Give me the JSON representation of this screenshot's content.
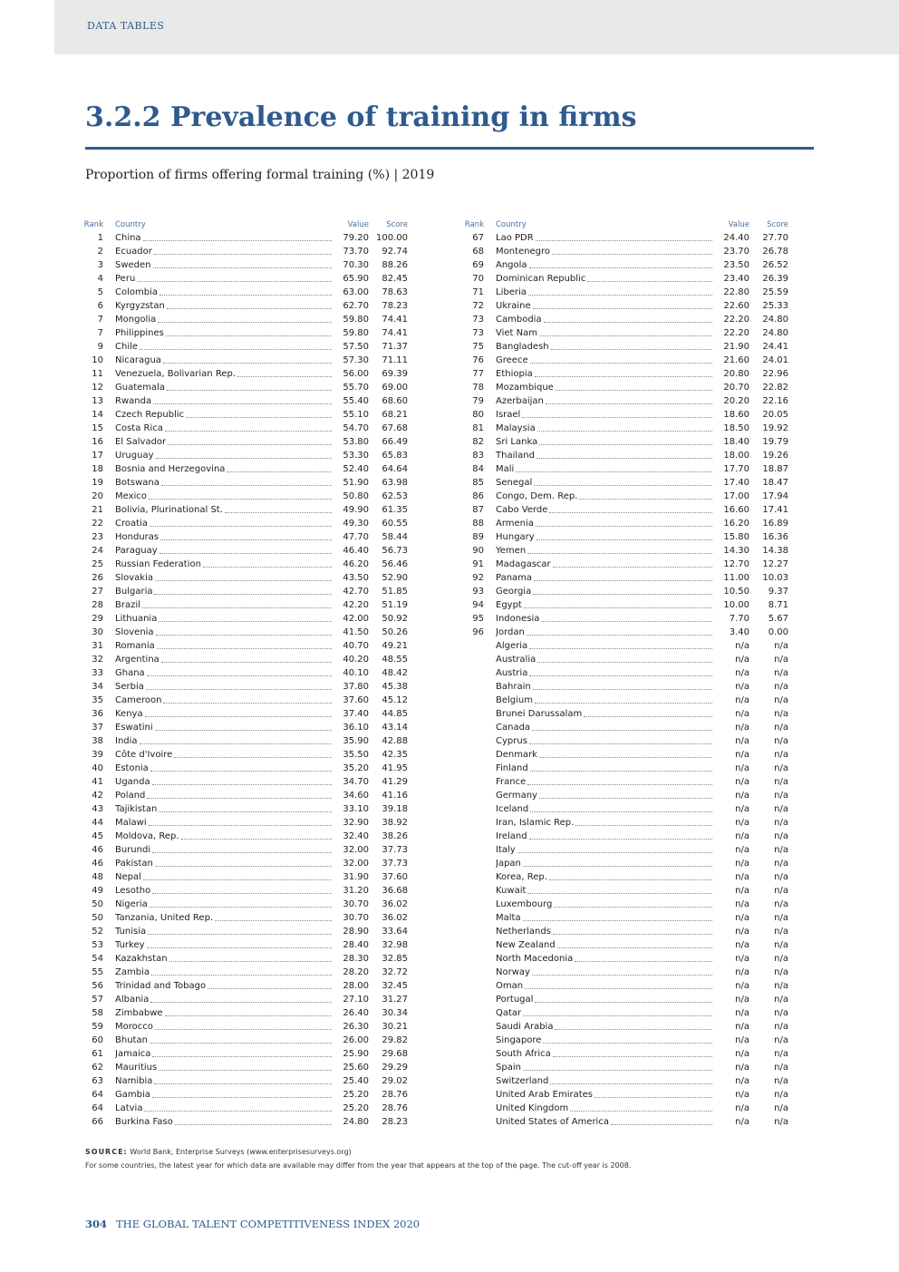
{
  "header": {
    "section": "DATA TABLES"
  },
  "title": "3.2.2  Prevalence of training in firms",
  "subtitle": "Proportion of firms offering formal training (%) | 2019",
  "columns": {
    "rank": "Rank",
    "country": "Country",
    "value": "Value",
    "score": "Score"
  },
  "colors": {
    "accent": "#2e5a8e",
    "band": "#e9e9e9"
  },
  "left_rows": [
    [
      "1",
      "China",
      "79.20",
      "100.00"
    ],
    [
      "2",
      "Ecuador",
      "73.70",
      "92.74"
    ],
    [
      "3",
      "Sweden",
      "70.30",
      "88.26"
    ],
    [
      "4",
      "Peru",
      "65.90",
      "82.45"
    ],
    [
      "5",
      "Colombia",
      "63.00",
      "78.63"
    ],
    [
      "6",
      "Kyrgyzstan",
      "62.70",
      "78.23"
    ],
    [
      "7",
      "Mongolia",
      "59.80",
      "74.41"
    ],
    [
      "7",
      "Philippines",
      "59.80",
      "74.41"
    ],
    [
      "9",
      "Chile",
      "57.50",
      "71.37"
    ],
    [
      "10",
      "Nicaragua",
      "57.30",
      "71.11"
    ],
    [
      "11",
      "Venezuela, Bolivarian Rep.",
      "56.00",
      "69.39"
    ],
    [
      "12",
      "Guatemala",
      "55.70",
      "69.00"
    ],
    [
      "13",
      "Rwanda",
      "55.40",
      "68.60"
    ],
    [
      "14",
      "Czech Republic",
      "55.10",
      "68.21"
    ],
    [
      "15",
      "Costa Rica",
      "54.70",
      "67.68"
    ],
    [
      "16",
      "El Salvador",
      "53.80",
      "66.49"
    ],
    [
      "17",
      "Uruguay",
      "53.30",
      "65.83"
    ],
    [
      "18",
      "Bosnia and Herzegovina",
      "52.40",
      "64.64"
    ],
    [
      "19",
      "Botswana",
      "51.90",
      "63.98"
    ],
    [
      "20",
      "Mexico",
      "50.80",
      "62.53"
    ],
    [
      "21",
      "Bolivia, Plurinational St.",
      "49.90",
      "61.35"
    ],
    [
      "22",
      "Croatia",
      "49.30",
      "60.55"
    ],
    [
      "23",
      "Honduras",
      "47.70",
      "58.44"
    ],
    [
      "24",
      "Paraguay",
      "46.40",
      "56.73"
    ],
    [
      "25",
      "Russian Federation",
      "46.20",
      "56.46"
    ],
    [
      "26",
      "Slovakia",
      "43.50",
      "52.90"
    ],
    [
      "27",
      "Bulgaria",
      "42.70",
      "51.85"
    ],
    [
      "28",
      "Brazil",
      "42.20",
      "51.19"
    ],
    [
      "29",
      "Lithuania",
      "42.00",
      "50.92"
    ],
    [
      "30",
      "Slovenia",
      "41.50",
      "50.26"
    ],
    [
      "31",
      "Romania",
      "40.70",
      "49.21"
    ],
    [
      "32",
      "Argentina",
      "40.20",
      "48.55"
    ],
    [
      "33",
      "Ghana",
      "40.10",
      "48.42"
    ],
    [
      "34",
      "Serbia",
      "37.80",
      "45.38"
    ],
    [
      "35",
      "Cameroon",
      "37.60",
      "45.12"
    ],
    [
      "36",
      "Kenya",
      "37.40",
      "44.85"
    ],
    [
      "37",
      "Eswatini",
      "36.10",
      "43.14"
    ],
    [
      "38",
      "India",
      "35.90",
      "42.88"
    ],
    [
      "39",
      "Côte d'Ivoire",
      "35.50",
      "42.35"
    ],
    [
      "40",
      "Estonia",
      "35.20",
      "41.95"
    ],
    [
      "41",
      "Uganda",
      "34.70",
      "41.29"
    ],
    [
      "42",
      "Poland",
      "34.60",
      "41.16"
    ],
    [
      "43",
      "Tajikistan",
      "33.10",
      "39.18"
    ],
    [
      "44",
      "Malawi",
      "32.90",
      "38.92"
    ],
    [
      "45",
      "Moldova, Rep.",
      "32.40",
      "38.26"
    ],
    [
      "46",
      "Burundi",
      "32.00",
      "37.73"
    ],
    [
      "46",
      "Pakistan",
      "32.00",
      "37.73"
    ],
    [
      "48",
      "Nepal",
      "31.90",
      "37.60"
    ],
    [
      "49",
      "Lesotho",
      "31.20",
      "36.68"
    ],
    [
      "50",
      "Nigeria",
      "30.70",
      "36.02"
    ],
    [
      "50",
      "Tanzania, United Rep.",
      "30.70",
      "36.02"
    ],
    [
      "52",
      "Tunisia",
      "28.90",
      "33.64"
    ],
    [
      "53",
      "Turkey",
      "28.40",
      "32.98"
    ],
    [
      "54",
      "Kazakhstan",
      "28.30",
      "32.85"
    ],
    [
      "55",
      "Zambia",
      "28.20",
      "32.72"
    ],
    [
      "56",
      "Trinidad and Tobago",
      "28.00",
      "32.45"
    ],
    [
      "57",
      "Albania",
      "27.10",
      "31.27"
    ],
    [
      "58",
      "Zimbabwe",
      "26.40",
      "30.34"
    ],
    [
      "59",
      "Morocco",
      "26.30",
      "30.21"
    ],
    [
      "60",
      "Bhutan",
      "26.00",
      "29.82"
    ],
    [
      "61",
      "Jamaica",
      "25.90",
      "29.68"
    ],
    [
      "62",
      "Mauritius",
      "25.60",
      "29.29"
    ],
    [
      "63",
      "Namibia",
      "25.40",
      "29.02"
    ],
    [
      "64",
      "Gambia",
      "25.20",
      "28.76"
    ],
    [
      "64",
      "Latvia",
      "25.20",
      "28.76"
    ],
    [
      "66",
      "Burkina Faso",
      "24.80",
      "28.23"
    ]
  ],
  "right_rows": [
    [
      "67",
      "Lao PDR",
      "24.40",
      "27.70"
    ],
    [
      "68",
      "Montenegro",
      "23.70",
      "26.78"
    ],
    [
      "69",
      "Angola",
      "23.50",
      "26.52"
    ],
    [
      "70",
      "Dominican Republic",
      "23.40",
      "26.39"
    ],
    [
      "71",
      "Liberia",
      "22.80",
      "25.59"
    ],
    [
      "72",
      "Ukraine",
      "22.60",
      "25.33"
    ],
    [
      "73",
      "Cambodia",
      "22.20",
      "24.80"
    ],
    [
      "73",
      "Viet Nam",
      "22.20",
      "24.80"
    ],
    [
      "75",
      "Bangladesh",
      "21.90",
      "24.41"
    ],
    [
      "76",
      "Greece",
      "21.60",
      "24.01"
    ],
    [
      "77",
      "Ethiopia",
      "20.80",
      "22.96"
    ],
    [
      "78",
      "Mozambique",
      "20.70",
      "22.82"
    ],
    [
      "79",
      "Azerbaijan",
      "20.20",
      "22.16"
    ],
    [
      "80",
      "Israel",
      "18.60",
      "20.05"
    ],
    [
      "81",
      "Malaysia",
      "18.50",
      "19.92"
    ],
    [
      "82",
      "Sri Lanka",
      "18.40",
      "19.79"
    ],
    [
      "83",
      "Thailand",
      "18.00",
      "19.26"
    ],
    [
      "84",
      "Mali",
      "17.70",
      "18.87"
    ],
    [
      "85",
      "Senegal",
      "17.40",
      "18.47"
    ],
    [
      "86",
      "Congo, Dem. Rep.",
      "17.00",
      "17.94"
    ],
    [
      "87",
      "Cabo Verde",
      "16.60",
      "17.41"
    ],
    [
      "88",
      "Armenia",
      "16.20",
      "16.89"
    ],
    [
      "89",
      "Hungary",
      "15.80",
      "16.36"
    ],
    [
      "90",
      "Yemen",
      "14.30",
      "14.38"
    ],
    [
      "91",
      "Madagascar",
      "12.70",
      "12.27"
    ],
    [
      "92",
      "Panama",
      "11.00",
      "10.03"
    ],
    [
      "93",
      "Georgia",
      "10.50",
      "9.37"
    ],
    [
      "94",
      "Egypt",
      "10.00",
      "8.71"
    ],
    [
      "95",
      "Indonesia",
      "7.70",
      "5.67"
    ],
    [
      "96",
      "Jordan",
      "3.40",
      "0.00"
    ],
    [
      "",
      "Algeria",
      "n/a",
      "n/a"
    ],
    [
      "",
      "Australia",
      "n/a",
      "n/a"
    ],
    [
      "",
      "Austria",
      "n/a",
      "n/a"
    ],
    [
      "",
      "Bahrain",
      "n/a",
      "n/a"
    ],
    [
      "",
      "Belgium",
      "n/a",
      "n/a"
    ],
    [
      "",
      "Brunei Darussalam",
      "n/a",
      "n/a"
    ],
    [
      "",
      "Canada",
      "n/a",
      "n/a"
    ],
    [
      "",
      "Cyprus",
      "n/a",
      "n/a"
    ],
    [
      "",
      "Denmark",
      "n/a",
      "n/a"
    ],
    [
      "",
      "Finland",
      "n/a",
      "n/a"
    ],
    [
      "",
      "France",
      "n/a",
      "n/a"
    ],
    [
      "",
      "Germany",
      "n/a",
      "n/a"
    ],
    [
      "",
      "Iceland",
      "n/a",
      "n/a"
    ],
    [
      "",
      "Iran, Islamic Rep.",
      "n/a",
      "n/a"
    ],
    [
      "",
      "Ireland",
      "n/a",
      "n/a"
    ],
    [
      "",
      "Italy",
      "n/a",
      "n/a"
    ],
    [
      "",
      "Japan",
      "n/a",
      "n/a"
    ],
    [
      "",
      "Korea, Rep.",
      "n/a",
      "n/a"
    ],
    [
      "",
      "Kuwait",
      "n/a",
      "n/a"
    ],
    [
      "",
      "Luxembourg",
      "n/a",
      "n/a"
    ],
    [
      "",
      "Malta",
      "n/a",
      "n/a"
    ],
    [
      "",
      "Netherlands",
      "n/a",
      "n/a"
    ],
    [
      "",
      "New Zealand",
      "n/a",
      "n/a"
    ],
    [
      "",
      "North Macedonia",
      "n/a",
      "n/a"
    ],
    [
      "",
      "Norway",
      "n/a",
      "n/a"
    ],
    [
      "",
      "Oman",
      "n/a",
      "n/a"
    ],
    [
      "",
      "Portugal",
      "n/a",
      "n/a"
    ],
    [
      "",
      "Qatar",
      "n/a",
      "n/a"
    ],
    [
      "",
      "Saudi Arabia",
      "n/a",
      "n/a"
    ],
    [
      "",
      "Singapore",
      "n/a",
      "n/a"
    ],
    [
      "",
      "South Africa",
      "n/a",
      "n/a"
    ],
    [
      "",
      "Spain",
      "n/a",
      "n/a"
    ],
    [
      "",
      "Switzerland",
      "n/a",
      "n/a"
    ],
    [
      "",
      "United Arab Emirates",
      "n/a",
      "n/a"
    ],
    [
      "",
      "United Kingdom",
      "n/a",
      "n/a"
    ],
    [
      "",
      "United States of America",
      "n/a",
      "n/a"
    ]
  ],
  "source": {
    "label": "SOURCE:",
    "text": " World Bank, Enterprise Surveys (www.enterprisesurveys.org)"
  },
  "note": "For some countries, the latest year for which data are available may differ from the year that appears at the top of the page. The cut-off year is 2008.",
  "footer": {
    "page": "304",
    "publication": "THE GLOBAL TALENT COMPETITIVENESS INDEX 2020"
  }
}
